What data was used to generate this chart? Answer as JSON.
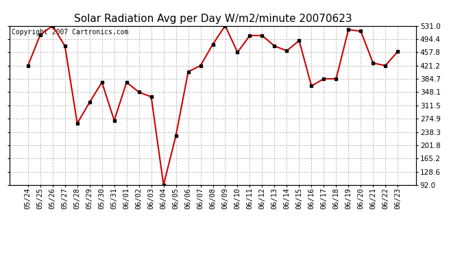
{
  "title": "Solar Radiation Avg per Day W/m2/minute 20070623",
  "copyright": "Copyright 2007 Cartronics.com",
  "labels": [
    "05/24",
    "05/25",
    "05/26",
    "05/27",
    "05/28",
    "05/29",
    "05/30",
    "05/31",
    "06/01",
    "06/02",
    "06/03",
    "06/04",
    "06/05",
    "06/06",
    "06/07",
    "06/08",
    "06/09",
    "06/10",
    "06/11",
    "06/12",
    "06/13",
    "06/14",
    "06/15",
    "06/16",
    "06/17",
    "06/18",
    "06/19",
    "06/20",
    "06/21",
    "06/22",
    "06/23"
  ],
  "values": [
    421.2,
    506.0,
    531.0,
    475.0,
    262.0,
    320.0,
    375.0,
    270.0,
    375.0,
    348.1,
    335.0,
    92.0,
    228.0,
    404.0,
    421.2,
    480.0,
    531.0,
    457.8,
    504.0,
    504.0,
    475.0,
    462.0,
    490.0,
    365.0,
    384.7,
    384.7,
    520.0,
    516.0,
    428.0,
    421.2,
    460.0
  ],
  "line_color": "#cc0000",
  "marker_color": "#000000",
  "background_color": "#ffffff",
  "grid_color": "#bbbbbb",
  "ylim": [
    92.0,
    531.0
  ],
  "yticks": [
    92.0,
    128.6,
    165.2,
    201.8,
    238.3,
    274.9,
    311.5,
    348.1,
    384.7,
    421.2,
    457.8,
    494.4,
    531.0
  ],
  "title_fontsize": 11,
  "copyright_fontsize": 7,
  "tick_fontsize": 7.5
}
